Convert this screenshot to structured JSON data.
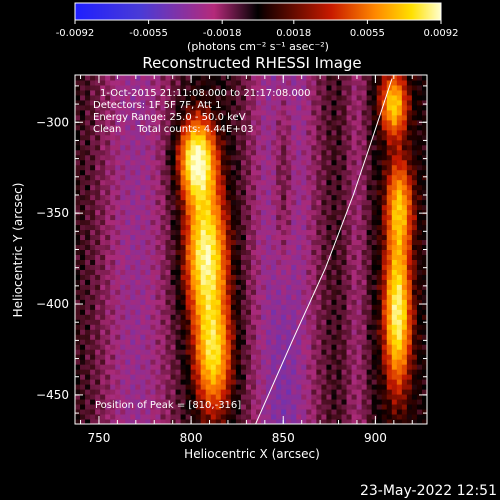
{
  "chart_data": {
    "type": "heatmap",
    "title": "Reconstructed RHESSI Image",
    "xlabel": "Heliocentric X (arcsec)",
    "ylabel": "Heliocentric Y (arcsec)",
    "xlim": [
      737,
      928
    ],
    "ylim": [
      -466,
      -274
    ],
    "x_ticks": [
      "750",
      "800",
      "850",
      "900"
    ],
    "y_ticks": [
      "-300",
      "-350",
      "-400",
      "-450"
    ],
    "colorbar": {
      "min": -0.0092,
      "max": 0.0092,
      "tick_labels": [
        "-0.0092",
        "-0.0055",
        "-0.0018",
        "0.0018",
        "0.0055",
        "0.0092"
      ],
      "units": "(photons cm⁻² s⁻¹ asec⁻²)"
    },
    "annotations": [
      "1-Oct-2015 21:11:08.000 to 21:17:08.000",
      "Detectors: 1F 5F 7F, Att 1",
      "Energy Range: 25.0 - 50.0 keV",
      "Clean     Total counts: 4.44E+03"
    ],
    "peak_label": "Position of Peak = [810,-316]",
    "timestamp": "23-May-2022 12:51",
    "sources": [
      {
        "x": 803,
        "y": -320,
        "amp": 0.0092,
        "sx": 7,
        "sy": 16
      },
      {
        "x": 808,
        "y": -372,
        "amp": 0.0088,
        "sx": 8,
        "sy": 26
      },
      {
        "x": 812,
        "y": -428,
        "amp": 0.0072,
        "sx": 7,
        "sy": 22
      },
      {
        "x": 910,
        "y": -290,
        "amp": 0.007,
        "sx": 5,
        "sy": 12
      },
      {
        "x": 913,
        "y": -345,
        "amp": 0.006,
        "sx": 5,
        "sy": 18
      },
      {
        "x": 912,
        "y": -405,
        "amp": 0.0086,
        "sx": 5,
        "sy": 28
      },
      {
        "x": 850,
        "y": -330,
        "amp": 0.0025,
        "sx": 4,
        "sy": 40
      }
    ],
    "limb_curve": {
      "x": [
        835,
        855,
        873,
        888,
        898,
        909
      ],
      "y": [
        -466,
        -420,
        -380,
        -340,
        -310,
        -276
      ]
    }
  }
}
